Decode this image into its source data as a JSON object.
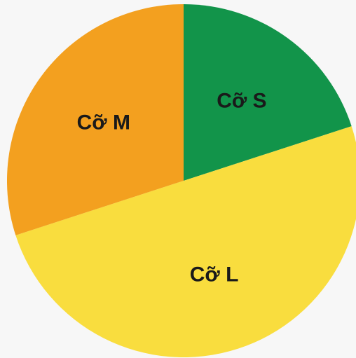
{
  "chart_data": {
    "type": "pie",
    "title": "",
    "start_angle_deg": 0,
    "direction": "clockwise",
    "slices": [
      {
        "label": "Cỡ S",
        "value": 20,
        "color": "#12944a"
      },
      {
        "label": "Cỡ L",
        "value": 50,
        "color": "#f9dd3e"
      },
      {
        "label": "Cỡ M",
        "value": 30,
        "color": "#f3a01f"
      }
    ]
  }
}
